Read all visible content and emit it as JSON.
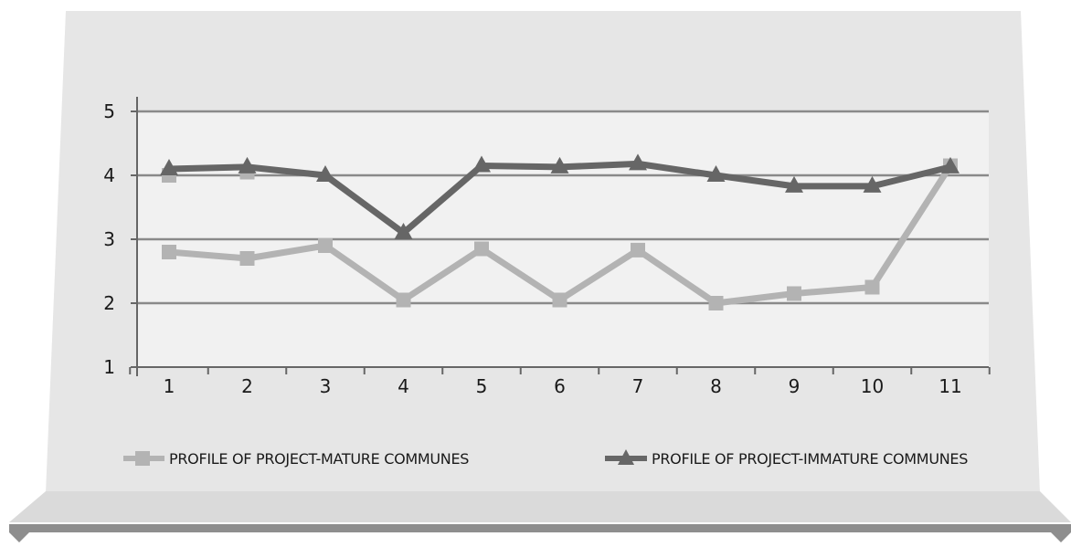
{
  "chart_data": {
    "type": "line",
    "title": "",
    "xlabel": "",
    "ylabel": "",
    "x": [
      1,
      2,
      3,
      4,
      5,
      6,
      7,
      8,
      9,
      10,
      11
    ],
    "x_tick_labels": [
      "1",
      "2",
      "3",
      "4",
      "5",
      "6",
      "7",
      "8",
      "9",
      "10",
      "11"
    ],
    "ylim": [
      1,
      5
    ],
    "y_ticks": [
      1,
      2,
      3,
      4,
      5
    ],
    "y_tick_labels": [
      "1",
      "2",
      "3",
      "4",
      "5"
    ],
    "grid": "horizontal",
    "legend_position": "bottom",
    "series": [
      {
        "name": "PROFILE OF PROJECT-MATURE COMMUNES",
        "marker": "square",
        "color": "#b3b3b3",
        "values": [
          2.8,
          2.7,
          2.9,
          2.05,
          2.85,
          2.05,
          2.83,
          2.0,
          2.15,
          2.25,
          4.15
        ],
        "extra_marks": [
          {
            "x": 1,
            "y": 4.0
          },
          {
            "x": 2,
            "y": 4.05
          }
        ]
      },
      {
        "name": "PROFILE OF PROJECT-IMMATURE COMMUNES",
        "marker": "triangle",
        "color": "#666666",
        "values": [
          4.1,
          4.13,
          4.0,
          3.1,
          4.15,
          4.13,
          4.18,
          4.0,
          3.83,
          3.83,
          4.13
        ]
      }
    ]
  }
}
